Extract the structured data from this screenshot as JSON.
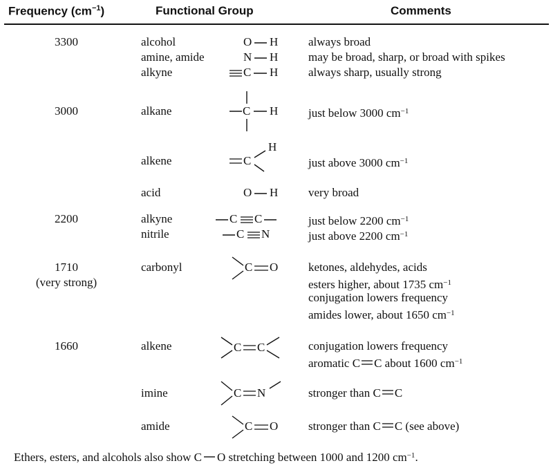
{
  "header": {
    "frequency_label": "Frequency (cm",
    "frequency_sup": "−1",
    "frequency_close": ")",
    "group_label": "Functional Group",
    "comments_label": "Comments"
  },
  "rows": [
    {
      "freq": "3300",
      "groups": [
        "alcohol",
        "amine, amide",
        "alkyne"
      ],
      "comments": [
        "always broad",
        "may be broad, sharp, or broad with spikes",
        "always sharp, usually strong"
      ]
    },
    {
      "freq": "3000",
      "group": "alkane",
      "comment": "just below 3000 cm",
      "sup": "−1"
    },
    {
      "group": "alkene",
      "comment": "just above 3000 cm",
      "sup": "−1"
    },
    {
      "group": "acid",
      "comment": "very broad"
    },
    {
      "freq": "2200",
      "groups": [
        "alkyne",
        "nitrile"
      ],
      "comments": [
        "just below 2200 cm",
        "just above 2200 cm"
      ],
      "sup": "−1"
    },
    {
      "freq": "1710",
      "freq_note": "(very strong)",
      "group": "carbonyl",
      "comments": [
        "ketones, aldehydes, acids",
        "esters higher, about 1735 cm",
        "conjugation lowers frequency",
        "amides lower, about 1650 cm"
      ],
      "sup": "−1"
    },
    {
      "freq": "1660",
      "group": "alkene",
      "comments": [
        "conjugation lowers frequency",
        "aromatic C",
        "C about 1600 cm"
      ],
      "sup": "−1"
    },
    {
      "group": "imine",
      "comment": "stronger than C",
      "comment_end": "C"
    },
    {
      "group": "amide",
      "comment": "stronger than C",
      "comment_end": "C (see above)"
    }
  ],
  "structures": {
    "OH": [
      "O",
      "H"
    ],
    "NH": [
      "N",
      "H"
    ],
    "CH": [
      "C",
      "H"
    ],
    "CC": [
      "C",
      "C"
    ],
    "CN": [
      "C",
      "N"
    ],
    "CO": [
      "C",
      "O"
    ],
    "CCalkene": [
      "C",
      "C"
    ],
    "CNimine": [
      "C",
      "N"
    ]
  },
  "footnote": {
    "text_a": "Ethers, esters, and alcohols also show C",
    "text_b": "O stretching between 1000 and 1200 cm",
    "sup": "−1",
    "end": "."
  }
}
